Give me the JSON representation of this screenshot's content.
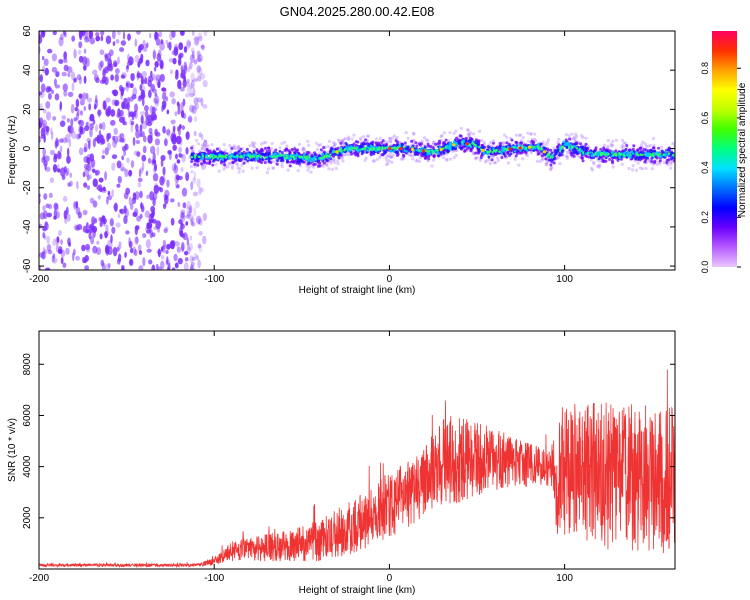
{
  "title": "GN04.2025.280.00.42.E08",
  "chart_data": [
    {
      "type": "heatmap",
      "xlabel": "Height of straight line (km)",
      "ylabel": "Frequency (Hz)",
      "xlim": [
        -200,
        163
      ],
      "ylim": [
        -62,
        60
      ],
      "xticks": [
        -200,
        -100,
        0,
        100
      ],
      "yticks": [
        -60,
        -40,
        -20,
        0,
        20,
        40,
        60
      ],
      "colorbar": {
        "label": "Normalized spectral amplitude",
        "range": [
          0,
          0.95
        ],
        "ticks": [
          "0.0",
          "0.2",
          "0.4",
          "0.6",
          "0.8"
        ],
        "colors": [
          "#e9c6ff",
          "#b75cff",
          "#6a00ff",
          "#0000ff",
          "#0070ff",
          "#00e0ff",
          "#00ff80",
          "#40ff00",
          "#c0ff00",
          "#ffff00",
          "#ffa000",
          "#ff3000",
          "#ff0060"
        ]
      },
      "noise_region": {
        "x_from": -200,
        "x_to": -105,
        "color": "#7b2cff"
      },
      "ridge_center": [
        {
          "x": -113,
          "y": -4
        },
        {
          "x": -90,
          "y": -4
        },
        {
          "x": -60,
          "y": -4
        },
        {
          "x": -40,
          "y": -5
        },
        {
          "x": -25,
          "y": 0
        },
        {
          "x": -10,
          "y": 0
        },
        {
          "x": 10,
          "y": 0
        },
        {
          "x": 25,
          "y": -2
        },
        {
          "x": 40,
          "y": 3
        },
        {
          "x": 48,
          "y": 2
        },
        {
          "x": 55,
          "y": -2
        },
        {
          "x": 70,
          "y": 0
        },
        {
          "x": 85,
          "y": 1
        },
        {
          "x": 93,
          "y": -5
        },
        {
          "x": 100,
          "y": 2
        },
        {
          "x": 115,
          "y": -3
        },
        {
          "x": 130,
          "y": -3
        },
        {
          "x": 150,
          "y": -3
        },
        {
          "x": 163,
          "y": -3
        }
      ]
    },
    {
      "type": "line",
      "xlabel": "Height of straight line (km)",
      "ylabel": "SNR (10 * v/v)",
      "xlim": [
        -200,
        163
      ],
      "ylim": [
        0,
        9300
      ],
      "xticks": [
        -200,
        -100,
        0,
        100
      ],
      "yticks": [
        2000,
        4000,
        6000,
        8000
      ],
      "color": "#ef3333",
      "series": [
        {
          "name": "SNR",
          "envelope": [
            {
              "x": -200,
              "mean": 150,
              "spread": 60
            },
            {
              "x": -110,
              "mean": 150,
              "spread": 60
            },
            {
              "x": -100,
              "mean": 300,
              "spread": 150
            },
            {
              "x": -90,
              "mean": 700,
              "spread": 400
            },
            {
              "x": -60,
              "mean": 900,
              "spread": 600
            },
            {
              "x": -40,
              "mean": 1100,
              "spread": 800
            },
            {
              "x": -20,
              "mean": 1700,
              "spread": 1100
            },
            {
              "x": 0,
              "mean": 2500,
              "spread": 1300
            },
            {
              "x": 15,
              "mean": 3100,
              "spread": 1300
            },
            {
              "x": 25,
              "mean": 3700,
              "spread": 1400
            },
            {
              "x": 30,
              "mean": 4200,
              "spread": 1800
            },
            {
              "x": 50,
              "mean": 4300,
              "spread": 1500
            },
            {
              "x": 70,
              "mean": 4200,
              "spread": 1000
            },
            {
              "x": 92,
              "mean": 3900,
              "spread": 700
            },
            {
              "x": 96,
              "mean": 3800,
              "spread": 2600
            },
            {
              "x": 130,
              "mean": 3600,
              "spread": 3000
            },
            {
              "x": 163,
              "mean": 3400,
              "spread": 2900
            }
          ]
        }
      ]
    }
  ]
}
